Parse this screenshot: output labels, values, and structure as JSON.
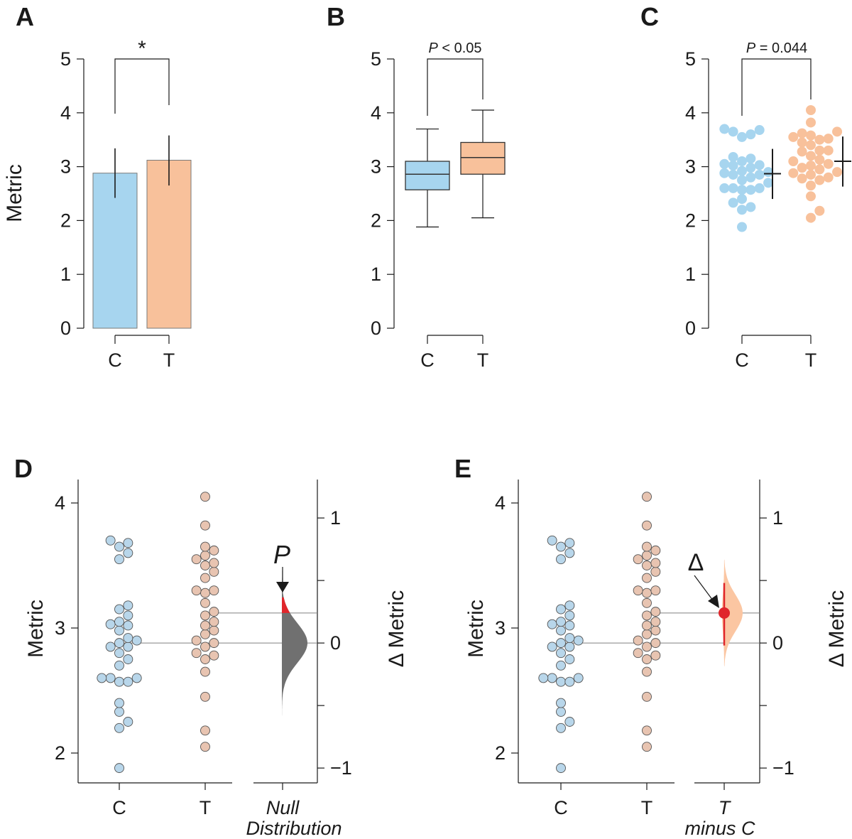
{
  "colors": {
    "control": "#a7d5ef",
    "control_dot": "#b8d6ea",
    "treatment": "#f8c19b",
    "treatment_dot": "#e8c4b1",
    "null_dist": "#707070",
    "highlight": "#e0262b",
    "effect_dist": "#fbc6a2"
  },
  "chart_data": [
    {
      "panel": "A",
      "type": "bar",
      "ylabel": "Metric",
      "ylim": [
        0,
        5
      ],
      "yticks": [
        "0",
        "1",
        "2",
        "3",
        "4",
        "5"
      ],
      "categories": [
        "C",
        "T"
      ],
      "values": [
        2.88,
        3.12
      ],
      "error_low": [
        2.42,
        2.65
      ],
      "error_high": [
        3.34,
        3.58
      ],
      "annotation": "*"
    },
    {
      "panel": "B",
      "type": "box",
      "ylim": [
        0,
        5
      ],
      "yticks": [
        "0",
        "1",
        "2",
        "3",
        "4",
        "5"
      ],
      "categories": [
        "C",
        "T"
      ],
      "whisker_low": [
        1.88,
        2.05
      ],
      "q1": [
        2.57,
        2.86
      ],
      "median": [
        2.86,
        3.17
      ],
      "q3": [
        3.1,
        3.45
      ],
      "whisker_high": [
        3.7,
        4.05
      ],
      "annotation_italic": "P",
      "annotation": " < 0.05"
    },
    {
      "panel": "C",
      "type": "scatter",
      "ylim": [
        0,
        5
      ],
      "yticks": [
        "0",
        "1",
        "2",
        "3",
        "4",
        "5"
      ],
      "categories": [
        "C",
        "T"
      ],
      "mean": [
        2.87,
        3.1
      ],
      "sd_low": [
        2.4,
        2.63
      ],
      "sd_high": [
        3.33,
        3.56
      ],
      "annotation_italic": "P",
      "annotation": " = 0.044"
    },
    {
      "panel": "D",
      "type": "scatter",
      "ylabel": "Metric",
      "ylabel_right": "Δ Metric",
      "ylim": [
        1.8,
        4.2
      ],
      "yticks": [
        "2",
        "3",
        "4"
      ],
      "right_ylim": [
        -1.08,
        1.32
      ],
      "right_yticks": [
        "−1",
        "0",
        "1"
      ],
      "categories": [
        "C",
        "T"
      ],
      "extra_category": [
        "Null",
        "Distribution"
      ],
      "control_mean": 2.88,
      "treatment_mean": 3.12,
      "p_marker": "P"
    },
    {
      "panel": "E",
      "type": "scatter",
      "ylabel": "Metric",
      "ylabel_right": "Δ Metric",
      "ylim": [
        1.8,
        4.2
      ],
      "yticks": [
        "2",
        "3",
        "4"
      ],
      "right_ylim": [
        -1.08,
        1.32
      ],
      "right_yticks": [
        "−1",
        "0",
        "1"
      ],
      "categories": [
        "C",
        "T"
      ],
      "extra_category": [
        "T",
        "minus C"
      ],
      "control_mean": 2.88,
      "treatment_mean": 3.12,
      "effect_size": 0.24,
      "effect_ci": [
        -0.02,
        0.48
      ],
      "delta_marker": "Δ"
    }
  ],
  "series": {
    "C": [
      1.88,
      2.2,
      2.25,
      2.33,
      2.4,
      2.57,
      2.57,
      2.6,
      2.6,
      2.6,
      2.7,
      2.75,
      2.8,
      2.85,
      2.85,
      2.88,
      2.9,
      2.92,
      2.98,
      3.02,
      3.03,
      3.05,
      3.1,
      3.15,
      3.18,
      3.55,
      3.6,
      3.65,
      3.68,
      3.7
    ],
    "T": [
      2.05,
      2.18,
      2.45,
      2.65,
      2.75,
      2.78,
      2.8,
      2.85,
      2.88,
      2.9,
      2.95,
      2.98,
      3.02,
      3.05,
      3.1,
      3.13,
      3.2,
      3.28,
      3.3,
      3.3,
      3.4,
      3.45,
      3.5,
      3.52,
      3.55,
      3.58,
      3.62,
      3.65,
      3.82,
      4.05
    ]
  }
}
